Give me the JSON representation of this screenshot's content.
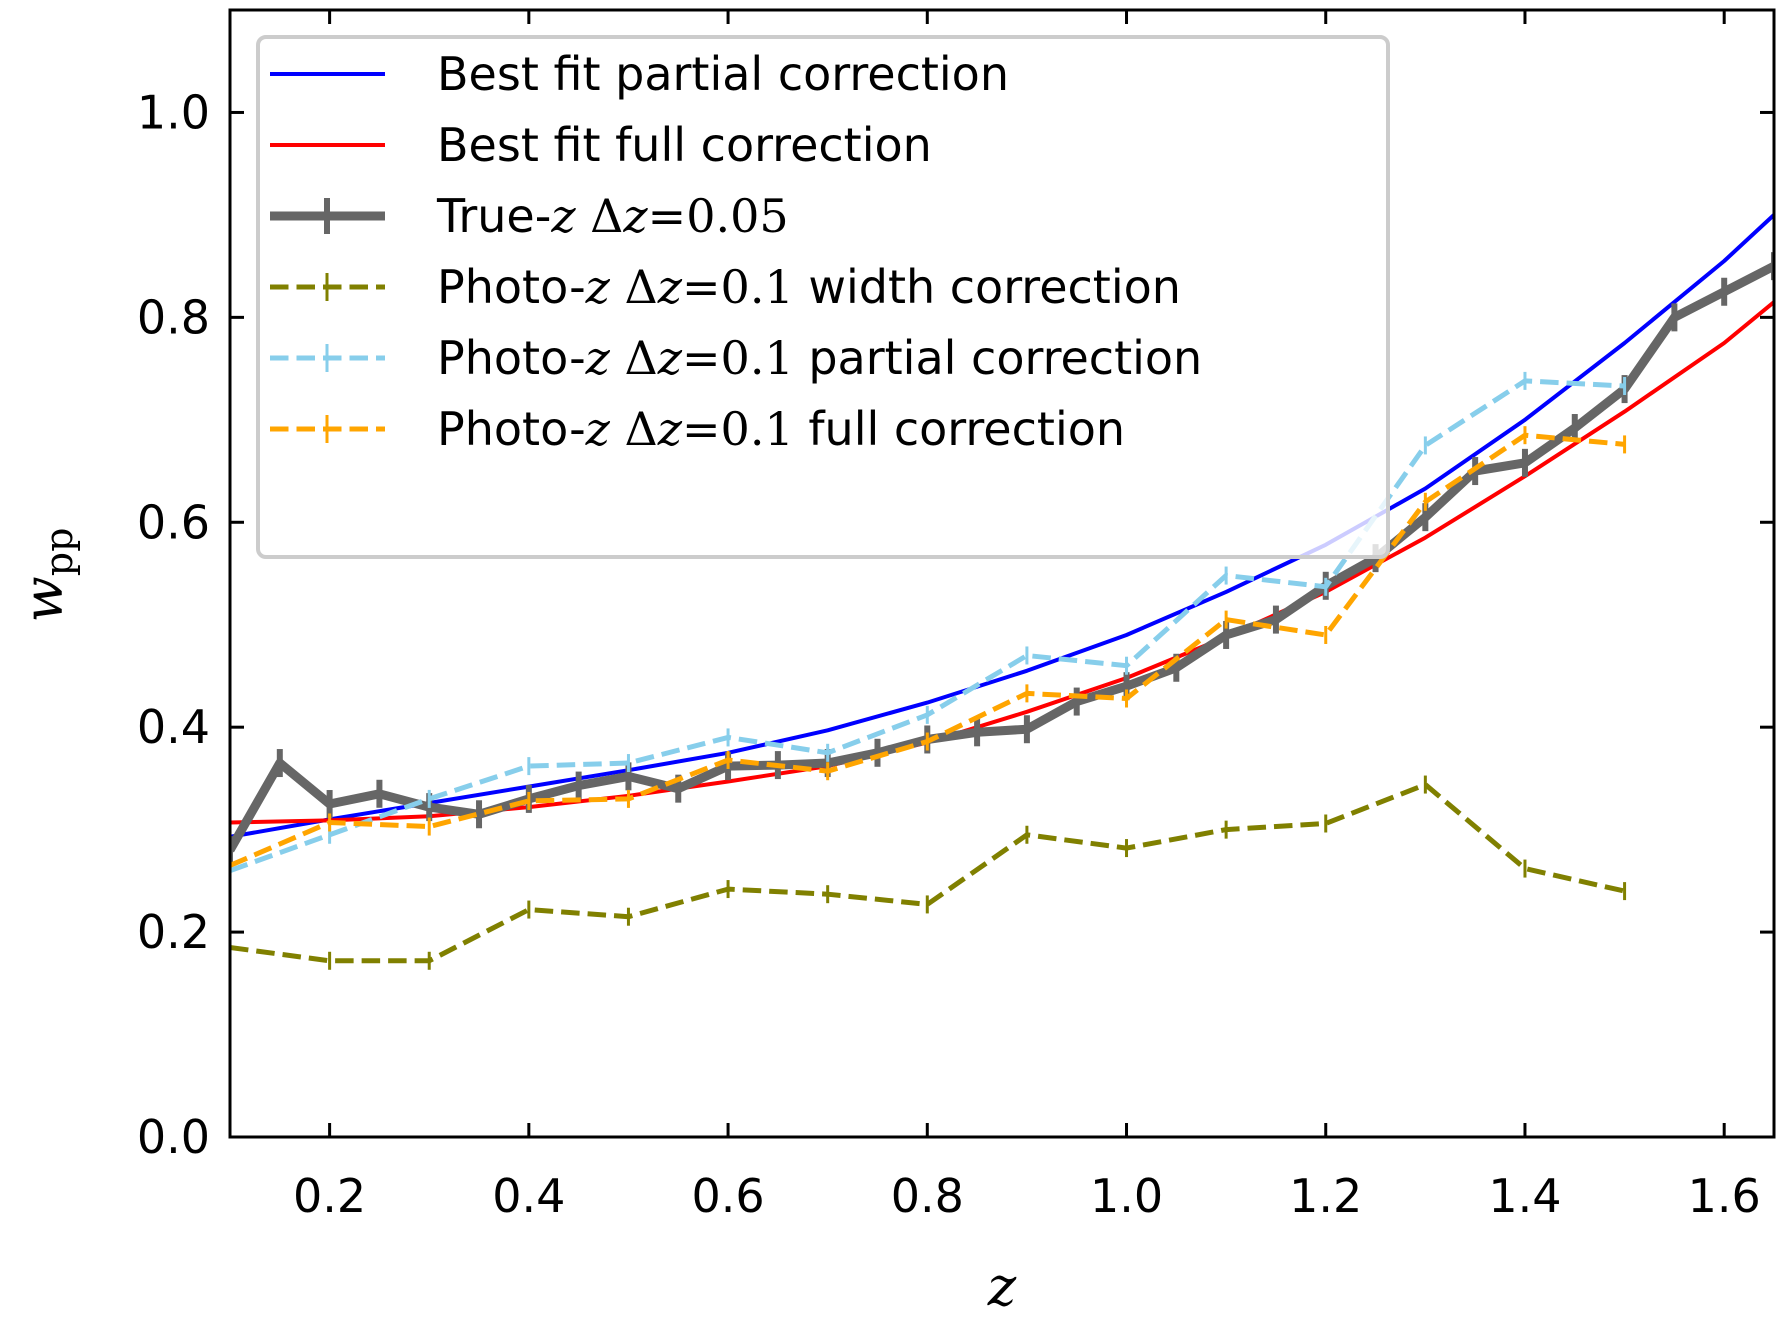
{
  "chart_data": {
    "type": "line",
    "xlabel": "z",
    "ylabel": "w",
    "ylabel_sub": "pp",
    "xlim": [
      0.1,
      1.65
    ],
    "ylim": [
      0.0,
      1.1
    ],
    "xticks": [
      0.2,
      0.4,
      0.6,
      0.8,
      1.0,
      1.2,
      1.4,
      1.6
    ],
    "xtick_labels": [
      "0.2",
      "0.4",
      "0.6",
      "0.8",
      "1.0",
      "1.2",
      "1.4",
      "1.6"
    ],
    "yticks": [
      0.0,
      0.2,
      0.4,
      0.6,
      0.8,
      1.0
    ],
    "ytick_labels": [
      "0.0",
      "0.2",
      "0.4",
      "0.6",
      "0.8",
      "1.0"
    ],
    "legend_position": "top-left",
    "series": [
      {
        "name": "Best fit partial correction",
        "legend": {
          "pre": "Best fit partial correction",
          "var": "",
          "math": "",
          "post": ""
        },
        "color": "#0000ff",
        "style": "solid",
        "width": 4,
        "markers": false,
        "x": [
          0.1,
          0.2,
          0.3,
          0.4,
          0.5,
          0.6,
          0.7,
          0.8,
          0.9,
          1.0,
          1.1,
          1.2,
          1.3,
          1.4,
          1.5,
          1.6,
          1.65
        ],
        "y": [
          0.293,
          0.31,
          0.326,
          0.342,
          0.358,
          0.375,
          0.397,
          0.424,
          0.455,
          0.49,
          0.532,
          0.578,
          0.633,
          0.7,
          0.775,
          0.855,
          0.9
        ]
      },
      {
        "name": "Best fit full correction",
        "legend": {
          "pre": "Best fit full correction",
          "var": "",
          "math": "",
          "post": ""
        },
        "color": "#ff0000",
        "style": "solid",
        "width": 4,
        "markers": false,
        "x": [
          0.1,
          0.2,
          0.3,
          0.4,
          0.5,
          0.6,
          0.7,
          0.8,
          0.9,
          1.0,
          1.1,
          1.2,
          1.3,
          1.4,
          1.5,
          1.6,
          1.65
        ],
        "y": [
          0.307,
          0.309,
          0.313,
          0.322,
          0.333,
          0.347,
          0.362,
          0.385,
          0.415,
          0.448,
          0.488,
          0.532,
          0.585,
          0.645,
          0.708,
          0.775,
          0.815
        ]
      },
      {
        "name": "True-z Δz = 0.05",
        "legend": {
          "pre": "True-",
          "var": "z",
          "math": "Δz = 0.05",
          "post": ""
        },
        "color": "#666666",
        "style": "solid",
        "width": 9,
        "markers": true,
        "x": [
          0.1,
          0.15,
          0.2,
          0.25,
          0.3,
          0.35,
          0.4,
          0.45,
          0.5,
          0.55,
          0.6,
          0.65,
          0.7,
          0.75,
          0.8,
          0.85,
          0.9,
          0.95,
          1.0,
          1.05,
          1.1,
          1.15,
          1.2,
          1.25,
          1.3,
          1.35,
          1.4,
          1.45,
          1.5,
          1.55,
          1.6,
          1.65
        ],
        "y": [
          0.28,
          0.365,
          0.325,
          0.335,
          0.322,
          0.315,
          0.33,
          0.343,
          0.352,
          0.34,
          0.362,
          0.363,
          0.365,
          0.375,
          0.388,
          0.395,
          0.398,
          0.425,
          0.44,
          0.458,
          0.49,
          0.505,
          0.538,
          0.565,
          0.605,
          0.65,
          0.658,
          0.692,
          0.73,
          0.8,
          0.825,
          0.85
        ]
      },
      {
        "name": "Photo-z Δz = 0.1 width correction",
        "legend": {
          "pre": "Photo-",
          "var": "z",
          "math": "Δz = 0.1",
          "post": " width correction"
        },
        "color": "#808000",
        "style": "dashed",
        "width": 5,
        "markers": true,
        "x": [
          0.1,
          0.2,
          0.3,
          0.4,
          0.5,
          0.6,
          0.7,
          0.8,
          0.9,
          1.0,
          1.1,
          1.2,
          1.3,
          1.4,
          1.5
        ],
        "y": [
          0.185,
          0.172,
          0.172,
          0.222,
          0.215,
          0.242,
          0.237,
          0.227,
          0.295,
          0.282,
          0.3,
          0.306,
          0.344,
          0.262,
          0.24
        ]
      },
      {
        "name": "Photo-z Δz = 0.1 partial correction",
        "legend": {
          "pre": "Photo-",
          "var": "z",
          "math": "Δz = 0.1",
          "post": " partial correction"
        },
        "color": "#87ceeb",
        "style": "dashed",
        "width": 5,
        "markers": true,
        "x": [
          0.1,
          0.2,
          0.3,
          0.4,
          0.5,
          0.6,
          0.7,
          0.8,
          0.9,
          1.0,
          1.1,
          1.2,
          1.3,
          1.4,
          1.5
        ],
        "y": [
          0.26,
          0.295,
          0.33,
          0.362,
          0.365,
          0.39,
          0.375,
          0.412,
          0.47,
          0.46,
          0.548,
          0.537,
          0.675,
          0.738,
          0.733
        ]
      },
      {
        "name": "Photo-z Δz = 0.1 full correction",
        "legend": {
          "pre": "Photo-",
          "var": "z",
          "math": "Δz = 0.1",
          "post": " full correction"
        },
        "color": "#ffa500",
        "style": "dashed",
        "width": 5,
        "markers": true,
        "x": [
          0.1,
          0.2,
          0.3,
          0.4,
          0.5,
          0.6,
          0.7,
          0.8,
          0.9,
          1.0,
          1.1,
          1.2,
          1.3,
          1.4,
          1.5
        ],
        "y": [
          0.265,
          0.307,
          0.303,
          0.328,
          0.33,
          0.368,
          0.357,
          0.386,
          0.433,
          0.428,
          0.505,
          0.49,
          0.62,
          0.685,
          0.676
        ]
      }
    ]
  }
}
